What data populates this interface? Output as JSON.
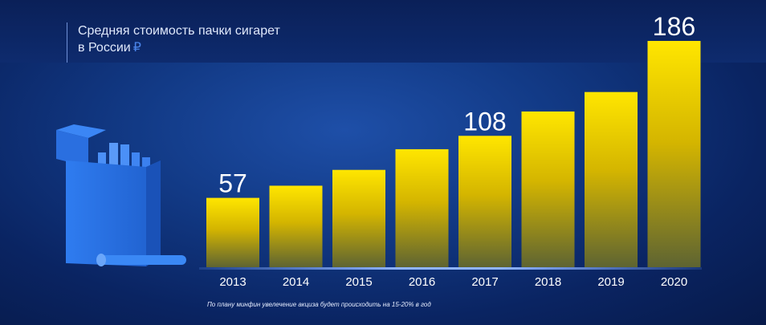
{
  "title": {
    "text": "Средняя стоимость пачки сигарет\nв России",
    "currency_symbol": "₽"
  },
  "footnote": "По плану минфин увелечение акциза будет происходить на 15-20% в год",
  "colors": {
    "bar_top": "#ffe600",
    "bar_bottom": "#6b6a2e",
    "accent_blue": "#4a84ea",
    "pack": "#2a6fe0"
  },
  "chart_data": {
    "type": "bar",
    "categories": [
      "2013",
      "2014",
      "2015",
      "2016",
      "2017",
      "2018",
      "2019",
      "2020"
    ],
    "values": [
      57,
      67,
      80,
      97,
      108,
      128,
      144,
      186
    ],
    "data_labels": [
      "57",
      "",
      "",
      "",
      "108",
      "",
      "",
      "186"
    ],
    "ylim": [
      0,
      186
    ],
    "grid": false,
    "legend": "none"
  }
}
